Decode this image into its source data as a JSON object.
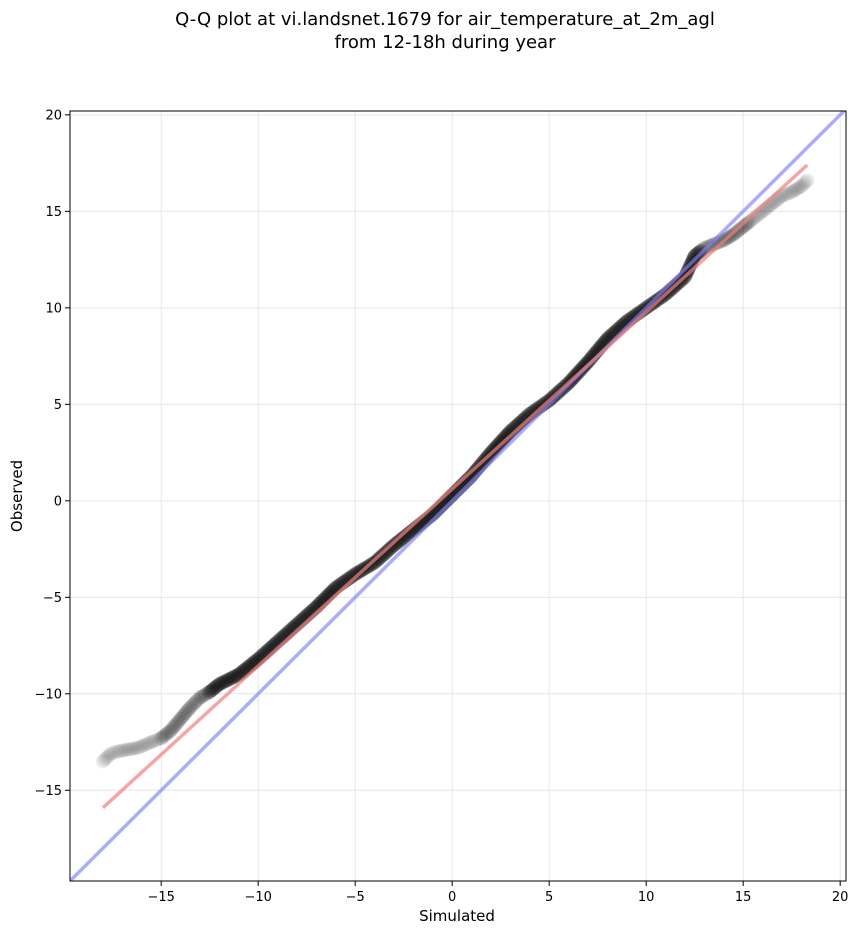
{
  "chart_data": {
    "type": "scatter",
    "title_lines": [
      "Q-Q plot at vi.landsnet.1679 for air_temperature_at_2m_agl",
      "from 12-18h during year"
    ],
    "xlabel": "Simulated",
    "ylabel": "Observed",
    "xlim": [
      -19.7,
      20.3
    ],
    "ylim": [
      -19.7,
      20.2
    ],
    "x_ticks": [
      -15,
      -10,
      -5,
      0,
      5,
      10,
      15,
      20
    ],
    "y_ticks": [
      -15,
      -10,
      -5,
      0,
      5,
      10,
      15,
      20
    ],
    "x_tick_labels": [
      "−15",
      "−10",
      "−5",
      "0",
      "5",
      "10",
      "15",
      "20"
    ],
    "y_tick_labels": [
      "−15",
      "−10",
      "−5",
      "0",
      "5",
      "10",
      "15",
      "20"
    ],
    "grid": true,
    "series": [
      {
        "kind": "quantile_points",
        "color": "#000000",
        "x": [
          -18,
          -17.8,
          -17.6,
          -17.3,
          -16.8,
          -16.2,
          -15.5,
          -15.0,
          -14.5,
          -14.0,
          -13.5,
          -13.0,
          -12.5,
          -12.0,
          -11.0,
          -10.0,
          -9.0,
          -8.0,
          -7.0,
          -6.0,
          -5.0,
          -4.0,
          -3.0,
          -2.0,
          -1.0,
          0.0,
          1.0,
          2.0,
          3.0,
          4.0,
          5.0,
          6.0,
          7.0,
          8.0,
          9.0,
          10.0,
          11.0,
          12.0,
          12.5,
          13.0,
          13.5,
          14.0,
          14.5,
          15.0,
          15.5,
          16.0,
          16.5,
          17.0,
          17.5,
          18.0,
          18.3
        ],
        "y": [
          -13.5,
          -13.3,
          -13.1,
          -13.0,
          -12.9,
          -12.8,
          -12.5,
          -12.3,
          -11.9,
          -11.3,
          -10.7,
          -10.2,
          -9.9,
          -9.5,
          -9.0,
          -8.2,
          -7.3,
          -6.4,
          -5.5,
          -4.5,
          -3.8,
          -3.2,
          -2.3,
          -1.5,
          -0.7,
          0.3,
          1.3,
          2.5,
          3.6,
          4.5,
          5.2,
          6.1,
          7.2,
          8.4,
          9.3,
          10.0,
          10.7,
          11.6,
          12.7,
          13.1,
          13.3,
          13.5,
          13.8,
          14.2,
          14.6,
          15.0,
          15.4,
          15.8,
          16.0,
          16.3,
          16.6
        ]
      },
      {
        "kind": "fit_line",
        "color": "#f08080",
        "x": [
          -18,
          18.3
        ],
        "y": [
          -15.9,
          17.4
        ]
      },
      {
        "kind": "one_to_one_line",
        "color": "#8080ff",
        "x": [
          -19.7,
          20.3
        ],
        "y": [
          -19.7,
          20.3
        ]
      }
    ]
  }
}
